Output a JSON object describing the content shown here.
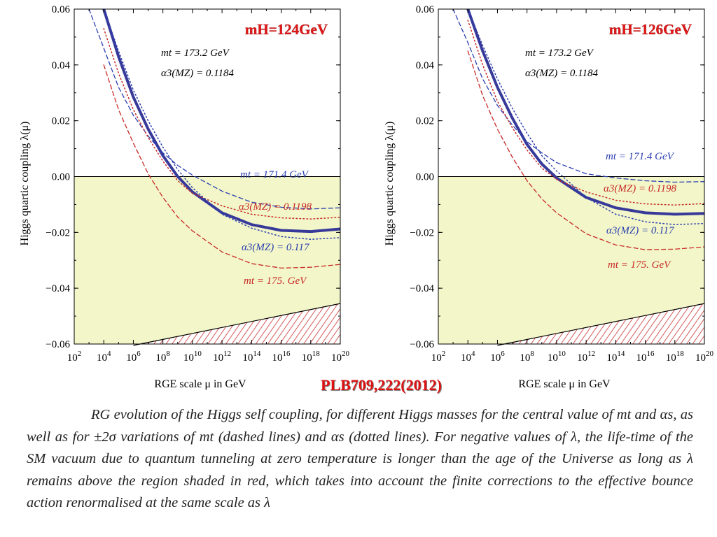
{
  "reference": "PLB709,222(2012)",
  "caption": "RG evolution of the Higgs self coupling, for different Higgs masses for the central value of mt and αs, as well as for ±2σ variations of mt (dashed lines) and αs (dotted lines). For negative values of λ, the life-time of the SM vacuum due to quantum tunneling at zero temperature is longer than the age of the Universe as long as λ remains above the region shaded in red, which takes into account the finite corrections to the effective bounce action renormalised at the same scale as λ",
  "chart_data": [
    {
      "type": "line",
      "title": "mH=124GeV",
      "xlabel": "RGE scale μ in GeV",
      "ylabel": "Higgs quartic coupling λ(μ)",
      "x_scale": "log10",
      "xlim": [
        100,
        1e+20
      ],
      "ylim": [
        -0.06,
        0.06
      ],
      "x_ticks": [
        "10^2",
        "10^4",
        "10^6",
        "10^8",
        "10^10",
        "10^12",
        "10^14",
        "10^16",
        "10^18",
        "10^20"
      ],
      "y_ticks": [
        "0.06",
        "0.04",
        "0.02",
        "0.00",
        "-0.02",
        "-0.04",
        "-0.06"
      ],
      "notes": [
        "mt = 173.2 GeV",
        "α3(MZ) = 0.1184"
      ],
      "shading": {
        "below_zero_color": "#f2f6c8",
        "instability_hatch_color": "#c83030",
        "instability_boundary": {
          "x": [
            1000000.0,
            1e+20
          ],
          "y": [
            -0.0605,
            -0.0455
          ]
        }
      },
      "series": [
        {
          "name": "central",
          "style": "solid",
          "color": "#383a9a",
          "x": [
            10000.0,
            100000.0,
            1000000.0,
            10000000.0,
            100000000.0,
            1000000000.0,
            10000000000.0,
            1000000000000.0,
            100000000000000.0,
            1e+16,
            1e+18,
            1e+20
          ],
          "y": [
            0.06,
            0.043,
            0.0285,
            0.017,
            0.0075,
            0.0,
            -0.0055,
            -0.013,
            -0.0172,
            -0.0193,
            -0.0197,
            -0.0188
          ]
        },
        {
          "name": "mt = 171.4 GeV",
          "style": "dashed",
          "color": "#2c3fb0",
          "x": [
            1000.0,
            10000.0,
            100000.0,
            1000000.0,
            10000000.0,
            100000000.0,
            1000000000.0,
            10000000000.0,
            1000000000000.0,
            100000000000000.0,
            1e+16,
            1e+18,
            1e+20
          ],
          "y": [
            0.06,
            0.046,
            0.032,
            0.022,
            0.0145,
            0.0085,
            0.004,
            0.0005,
            -0.0052,
            -0.0092,
            -0.011,
            -0.0116,
            -0.0112
          ]
        },
        {
          "name": "mt = 175. GeV",
          "style": "dashed",
          "color": "#c82828",
          "x": [
            10000.0,
            100000.0,
            1000000.0,
            10000000.0,
            100000000.0,
            1000000000.0,
            10000000000.0,
            1000000000000.0,
            100000000000000.0,
            1e+16,
            1e+18,
            1e+20
          ],
          "y": [
            0.04,
            0.024,
            0.012,
            0.001,
            -0.0075,
            -0.0145,
            -0.0195,
            -0.027,
            -0.0312,
            -0.0328,
            -0.0325,
            -0.0315
          ]
        },
        {
          "name": "α3(MZ) = 0.1198",
          "style": "dotted",
          "color": "#c82828",
          "x": [
            10000.0,
            100000.0,
            1000000.0,
            10000000.0,
            100000000.0,
            1000000000.0,
            10000000000.0,
            1000000000000.0,
            100000000000000.0,
            1e+16,
            1e+18,
            1e+20
          ],
          "y": [
            0.053,
            0.037,
            0.024,
            0.014,
            0.0055,
            -0.0015,
            -0.006,
            -0.0105,
            -0.0135,
            -0.0148,
            -0.0152,
            -0.0146
          ]
        },
        {
          "name": "α3(MZ) = 0.117",
          "style": "dotted",
          "color": "#2c3fb0",
          "x": [
            10000.0,
            100000.0,
            1000000.0,
            10000000.0,
            100000000.0,
            1000000000.0,
            10000000000.0,
            1000000000000.0,
            100000000000000.0,
            1e+16,
            1e+18,
            1e+20
          ],
          "y": [
            0.06,
            0.045,
            0.031,
            0.02,
            0.0105,
            0.0025,
            -0.004,
            -0.0135,
            -0.0185,
            -0.0215,
            -0.0225,
            -0.0219
          ]
        }
      ],
      "labels": [
        "mt = 171.4 GeV",
        "α3(MZ) = 0.1198",
        "α3(MZ) = 0.117",
        "mt = 175. GeV"
      ]
    },
    {
      "type": "line",
      "title": "mH=126GeV",
      "xlabel": "RGE scale μ in GeV",
      "ylabel": "Higgs quartic coupling λ(μ)",
      "x_scale": "log10",
      "xlim": [
        100,
        1e+20
      ],
      "ylim": [
        -0.06,
        0.06
      ],
      "x_ticks": [
        "10^2",
        "10^4",
        "10^6",
        "10^8",
        "10^10",
        "10^12",
        "10^14",
        "10^16",
        "10^18",
        "10^20"
      ],
      "y_ticks": [
        "0.06",
        "0.04",
        "0.02",
        "0.00",
        "-0.02",
        "-0.04",
        "-0.06"
      ],
      "notes": [
        "mt = 173.2 GeV",
        "α3(MZ) = 0.1184"
      ],
      "shading": {
        "below_zero_color": "#f2f6c8",
        "instability_hatch_color": "#c83030",
        "instability_boundary": {
          "x": [
            1000000.0,
            1e+20
          ],
          "y": [
            -0.0605,
            -0.0455
          ]
        }
      },
      "series": [
        {
          "name": "central",
          "style": "solid",
          "color": "#383a9a",
          "x": [
            10000.0,
            100000.0,
            1000000.0,
            10000000.0,
            100000000.0,
            1000000000.0,
            10000000000.0,
            1000000000000.0,
            100000000000000.0,
            1e+16,
            1e+18,
            1e+20
          ],
          "y": [
            0.06,
            0.045,
            0.032,
            0.021,
            0.0115,
            0.0045,
            -0.0005,
            -0.0075,
            -0.0112,
            -0.013,
            -0.0135,
            -0.0132
          ]
        },
        {
          "name": "mt = 171.4 GeV",
          "style": "dashed",
          "color": "#2c3fb0",
          "x": [
            1000.0,
            10000.0,
            100000.0,
            1000000.0,
            10000000.0,
            100000000.0,
            1000000000.0,
            10000000000.0,
            1000000000000.0,
            100000000000000.0,
            1e+16,
            1e+18,
            1e+20
          ],
          "y": [
            0.06,
            0.048,
            0.035,
            0.0255,
            0.0185,
            0.0125,
            0.0085,
            0.005,
            0.001,
            -0.0005,
            -0.0015,
            -0.002,
            -0.0018
          ]
        },
        {
          "name": "mt = 175. GeV",
          "style": "dashed",
          "color": "#c82828",
          "x": [
            10000.0,
            100000.0,
            1000000.0,
            10000000.0,
            100000000.0,
            1000000000.0,
            10000000000.0,
            1000000000000.0,
            100000000000000.0,
            1e+16,
            1e+18,
            1e+20
          ],
          "y": [
            0.045,
            0.029,
            0.017,
            0.007,
            -0.0015,
            -0.008,
            -0.013,
            -0.0205,
            -0.0245,
            -0.0262,
            -0.026,
            -0.0252
          ]
        },
        {
          "name": "α3(MZ) = 0.1198",
          "style": "dotted",
          "color": "#c82828",
          "x": [
            10000.0,
            100000.0,
            1000000.0,
            10000000.0,
            100000000.0,
            1000000000.0,
            10000000000.0,
            1000000000000.0,
            100000000000000.0,
            1e+16,
            1e+18,
            1e+20
          ],
          "y": [
            0.056,
            0.04,
            0.027,
            0.0175,
            0.0095,
            0.003,
            -0.001,
            -0.0055,
            -0.0085,
            -0.0098,
            -0.0102,
            -0.0097
          ]
        },
        {
          "name": "α3(MZ) = 0.117",
          "style": "dotted",
          "color": "#2c3fb0",
          "x": [
            10000.0,
            100000.0,
            1000000.0,
            10000000.0,
            100000000.0,
            1000000000.0,
            10000000000.0,
            1000000000000.0,
            100000000000000.0,
            1e+16,
            1e+18,
            1e+20
          ],
          "y": [
            0.06,
            0.047,
            0.035,
            0.0245,
            0.0155,
            0.0075,
            0.002,
            -0.0075,
            -0.0135,
            -0.0162,
            -0.0172,
            -0.0168
          ]
        }
      ],
      "labels": [
        "mt = 171.4 GeV",
        "α3(MZ) = 0.1198",
        "α3(MZ) = 0.117",
        "mt = 175. GeV"
      ]
    }
  ]
}
